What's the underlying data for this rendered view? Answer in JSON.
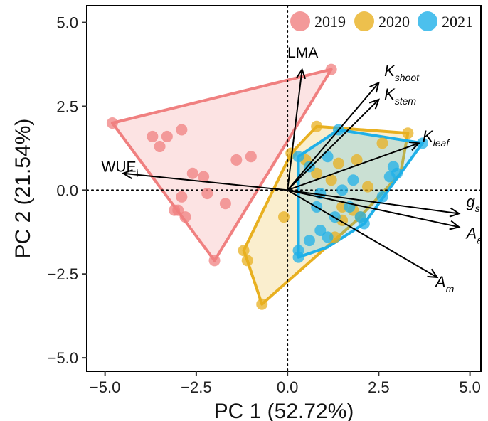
{
  "chart_data": {
    "type": "scatter",
    "title": "",
    "xlabel": "PC 1 (52.72%)",
    "ylabel": "PC 2 (21.54%)",
    "xlim": [
      -5.5,
      5.3
    ],
    "ylim": [
      -5.4,
      5.5
    ],
    "x_ticks": [
      -5.0,
      -2.5,
      0.0,
      2.5,
      5.0
    ],
    "y_ticks": [
      -5.0,
      -2.5,
      0.0,
      2.5,
      5.0
    ],
    "x_tick_labels": [
      "−5.0",
      "−2.5",
      "0.0",
      "2.5",
      "5.0"
    ],
    "y_tick_labels": [
      "−5.0",
      "−2.5",
      "0.0",
      "2.5",
      "5.0"
    ],
    "grid": false,
    "reference_lines": {
      "x": 0,
      "y": 0,
      "style": "dotted"
    },
    "legend": {
      "position": "top-right"
    },
    "series": [
      {
        "name": "2019",
        "color": "#f08080",
        "points": [
          [
            -4.8,
            2.0
          ],
          [
            1.2,
            3.6
          ],
          [
            -2.0,
            -2.1
          ],
          [
            -3.7,
            1.6
          ],
          [
            -3.5,
            1.3
          ],
          [
            -3.3,
            1.6
          ],
          [
            -2.9,
            1.8
          ],
          [
            -1.4,
            0.9
          ],
          [
            -1.0,
            1.0
          ],
          [
            -2.6,
            0.5
          ],
          [
            -2.3,
            0.4
          ],
          [
            -2.2,
            -0.1
          ],
          [
            -2.9,
            -0.2
          ],
          [
            -1.7,
            -0.4
          ],
          [
            -3.1,
            -0.6
          ],
          [
            -2.8,
            -0.8
          ],
          [
            -3.0,
            -0.6
          ]
        ],
        "hull": [
          [
            -4.8,
            2.0
          ],
          [
            1.2,
            3.6
          ],
          [
            -2.0,
            -2.1
          ]
        ]
      },
      {
        "name": "2020",
        "color": "#e8b020",
        "points": [
          [
            0.8,
            1.9
          ],
          [
            3.3,
            1.7
          ],
          [
            -0.7,
            -3.4
          ],
          [
            -1.2,
            -1.8
          ],
          [
            -1.1,
            -2.1
          ],
          [
            0.1,
            1.1
          ],
          [
            -0.1,
            -0.8
          ],
          [
            1.9,
            0.9
          ],
          [
            1.4,
            0.8
          ],
          [
            0.5,
            0.9
          ],
          [
            1.2,
            0.3
          ],
          [
            2.2,
            0.1
          ],
          [
            1.5,
            -0.5
          ],
          [
            1.8,
            -0.6
          ],
          [
            2.0,
            -0.8
          ],
          [
            1.3,
            -1.4
          ],
          [
            1.5,
            -0.9
          ],
          [
            2.6,
            1.4
          ],
          [
            0.8,
            0.5
          ]
        ],
        "hull": [
          [
            0.8,
            1.9
          ],
          [
            3.3,
            1.7
          ],
          [
            3.1,
            0.5
          ],
          [
            1.9,
            -0.9
          ],
          [
            -0.7,
            -3.4
          ],
          [
            -1.1,
            -2.1
          ],
          [
            -1.2,
            -1.8
          ],
          [
            0.1,
            1.1
          ]
        ]
      },
      {
        "name": "2021",
        "color": "#1fb0e8",
        "points": [
          [
            1.4,
            1.8
          ],
          [
            3.7,
            1.4
          ],
          [
            0.3,
            1.0
          ],
          [
            1.1,
            1.0
          ],
          [
            0.6,
            0.7
          ],
          [
            2.9,
            0.7
          ],
          [
            3.0,
            0.5
          ],
          [
            2.8,
            0.4
          ],
          [
            2.6,
            -0.2
          ],
          [
            1.8,
            0.3
          ],
          [
            1.5,
            0.0
          ],
          [
            0.9,
            -0.1
          ],
          [
            0.8,
            -0.5
          ],
          [
            1.7,
            -0.5
          ],
          [
            1.3,
            -0.8
          ],
          [
            2.0,
            -0.8
          ],
          [
            2.1,
            -1.0
          ],
          [
            1.1,
            -1.4
          ],
          [
            0.9,
            -1.2
          ],
          [
            0.3,
            -1.8
          ],
          [
            0.3,
            -2.0
          ],
          [
            0.6,
            -1.5
          ]
        ],
        "hull": [
          [
            1.4,
            1.8
          ],
          [
            3.7,
            1.4
          ],
          [
            2.1,
            -1.0
          ],
          [
            1.1,
            -1.7
          ],
          [
            0.3,
            -2.0
          ],
          [
            0.3,
            -1.8
          ],
          [
            0.3,
            1.0
          ]
        ]
      }
    ],
    "loadings": [
      {
        "id": "lma",
        "label": "LMA",
        "sub": "",
        "italic": false,
        "x": 0.4,
        "y": 3.6,
        "label_pos": [
          0.0,
          3.95
        ]
      },
      {
        "id": "wue",
        "label": "WUE",
        "sub": "i",
        "italic": false,
        "x": -4.5,
        "y": 0.5,
        "label_pos": [
          -5.1,
          0.55
        ]
      },
      {
        "id": "kshoot",
        "label": "K",
        "sub": "shoot",
        "italic": true,
        "x": 2.5,
        "y": 3.2,
        "label_pos": [
          2.65,
          3.4
        ]
      },
      {
        "id": "kstem",
        "label": "K",
        "sub": "stem",
        "italic": true,
        "x": 2.5,
        "y": 2.7,
        "label_pos": [
          2.65,
          2.7
        ]
      },
      {
        "id": "kleaf",
        "label": "K",
        "sub": "leaf",
        "italic": true,
        "x": 3.6,
        "y": 1.4,
        "label_pos": [
          3.7,
          1.45
        ]
      },
      {
        "id": "gs",
        "label": "g",
        "sub": "s",
        "italic": true,
        "x": 4.7,
        "y": -0.7,
        "label_pos": [
          4.9,
          -0.5
        ]
      },
      {
        "id": "aa",
        "label": "A",
        "sub": "a",
        "italic": true,
        "x": 4.7,
        "y": -1.1,
        "label_pos": [
          4.9,
          -1.45
        ]
      },
      {
        "id": "am",
        "label": "A",
        "sub": "m",
        "italic": true,
        "x": 4.1,
        "y": -2.6,
        "label_pos": [
          4.05,
          -2.9
        ]
      }
    ]
  }
}
